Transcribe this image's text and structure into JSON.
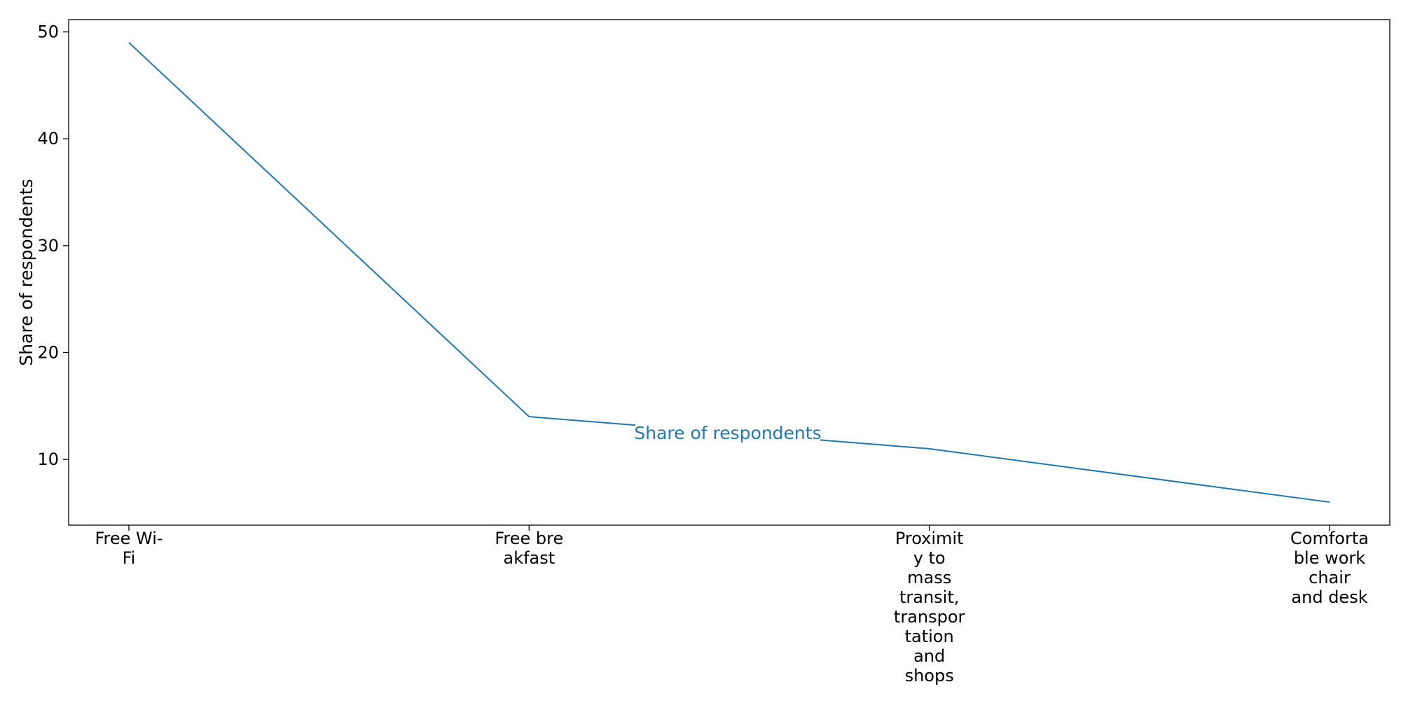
{
  "chart_data": {
    "type": "line",
    "title": "",
    "xlabel": "",
    "ylabel": "Share of respondents",
    "categories": [
      [
        "Free Wi-",
        "Fi"
      ],
      [
        "Free bre",
        "akfast"
      ],
      [
        "Proximit",
        "y to",
        "mass",
        "transit,",
        "transpor",
        "tation",
        "and",
        "shops"
      ],
      [
        "Comforta",
        "ble work",
        "chair",
        "and desk"
      ]
    ],
    "series": [
      {
        "name": "Share of respondents",
        "values": [
          49,
          14,
          11,
          6
        ]
      }
    ],
    "ylim": [
      3.85,
      51.15
    ],
    "yticks": [
      10,
      20,
      30,
      40,
      50
    ],
    "grid": false,
    "legend": "inline label on line",
    "colors": {
      "series": "#1f77b4",
      "axis": "#000000",
      "background": "#ffffff"
    }
  }
}
